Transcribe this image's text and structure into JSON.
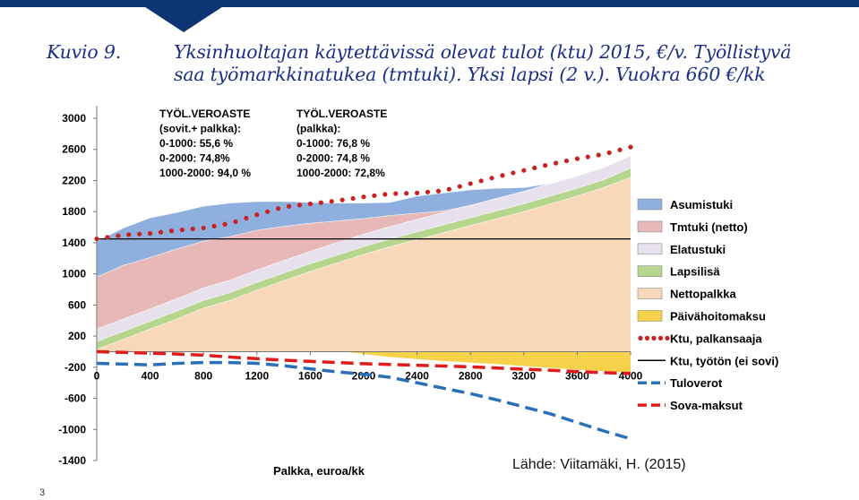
{
  "title": {
    "number": "Kuvio 9.",
    "line1": "Yksinhuoltajan käytettävissä olevat tulot (ktu) 2015, €/v. Työllistyvä",
    "line2": "saa työmarkkinatukea (tmtuki). Yksi lapsi (2 v.). Vuokra 660 €/kk"
  },
  "source": "Lähde: Viitamäki, H. (2015)",
  "page_number": "3",
  "colors": {
    "brand_bar": "#0d3473",
    "title": "#1c2f86",
    "asumistuki": "#8fb0de",
    "tmtuki": "#e8b8b9",
    "elatustuki": "#e7e1ee",
    "lapsilisa": "#b6d58d",
    "nettopalkka": "#f9d7b9",
    "paivahoito": "#f6d24b",
    "ktu_palkansaaja": "#c8211f",
    "ktu_tyoton": "#000000",
    "tuloverot": "#2b6fb7",
    "sova": "#e01b1b"
  },
  "chart_data": {
    "type": "area",
    "xlabel": "Palkka, euroa/kk",
    "ylabel": "",
    "xlim": [
      0,
      4000
    ],
    "ylim": [
      -1400,
      3000
    ],
    "xticks": [
      0,
      400,
      800,
      1200,
      1600,
      2000,
      2400,
      2800,
      3200,
      3600,
      4000
    ],
    "yticks": [
      3000,
      2600,
      2200,
      1800,
      1400,
      1000,
      600,
      200,
      -200,
      -600,
      -1000,
      -1400
    ],
    "grid": false,
    "legend_position": "right",
    "x": [
      0,
      200,
      400,
      600,
      800,
      1000,
      1200,
      1400,
      1600,
      1800,
      2000,
      2200,
      2400,
      2600,
      2800,
      3000,
      3200,
      3400,
      3600,
      3800,
      4000
    ],
    "stacked_cumulative_tops": {
      "Nettopalkka": [
        30,
        160,
        290,
        420,
        560,
        660,
        790,
        910,
        1030,
        1140,
        1250,
        1350,
        1440,
        1530,
        1620,
        1710,
        1800,
        1900,
        2000,
        2110,
        2240
      ],
      "Lapsilisä": [
        130,
        260,
        390,
        520,
        660,
        760,
        890,
        1010,
        1130,
        1240,
        1350,
        1450,
        1540,
        1630,
        1720,
        1810,
        1900,
        2000,
        2100,
        2210,
        2360
      ],
      "Elatustuki": [
        290,
        420,
        550,
        680,
        820,
        920,
        1050,
        1170,
        1290,
        1400,
        1510,
        1610,
        1700,
        1790,
        1880,
        1970,
        2060,
        2160,
        2260,
        2370,
        2520
      ],
      "Tmtuki (netto)": [
        960,
        1110,
        1210,
        1320,
        1420,
        1480,
        1560,
        1610,
        1650,
        1680,
        1710,
        1750,
        1780,
        1810,
        1880,
        1970,
        2060,
        2160,
        2260,
        2370,
        2520
      ],
      "Asumistuki": [
        1420,
        1590,
        1720,
        1790,
        1870,
        1910,
        1930,
        1930,
        1920,
        1910,
        1910,
        1920,
        2000,
        2040,
        2080,
        2100,
        2110,
        2160,
        2260,
        2370,
        2520
      ]
    },
    "paivahoitomaksu_range": {
      "x": [
        1900,
        2200,
        2600,
        3000,
        3400,
        3800,
        4000
      ],
      "values": [
        -10,
        -70,
        -120,
        -160,
        -210,
        -250,
        -270
      ]
    },
    "series": [
      {
        "name": "Ktu, palkansaaja",
        "values": [
          1450,
          1500,
          1520,
          1560,
          1590,
          1650,
          1760,
          1860,
          1900,
          1940,
          1990,
          2030,
          2040,
          2070,
          2160,
          2250,
          2330,
          2410,
          2480,
          2540,
          2630
        ]
      },
      {
        "name": "Ktu, työtön (ei sovi)",
        "values": [
          1450,
          1450,
          1450,
          1450,
          1450,
          1450,
          1450,
          1450,
          1450,
          1450,
          1450,
          1450,
          1450,
          1450,
          1450,
          1450,
          1450,
          1450,
          1450,
          1450,
          1450
        ]
      },
      {
        "name": "Tuloverot",
        "values": [
          -150,
          -160,
          -170,
          -150,
          -140,
          -140,
          -150,
          -180,
          -220,
          -260,
          -290,
          -330,
          -400,
          -470,
          -540,
          -620,
          -710,
          -800,
          -910,
          -1020,
          -1120
        ]
      },
      {
        "name": "Sova-maksut",
        "values": [
          0,
          -10,
          -20,
          -30,
          -45,
          -70,
          -90,
          -110,
          -125,
          -140,
          -155,
          -165,
          -175,
          -185,
          -195,
          -210,
          -225,
          -240,
          -255,
          -270,
          -280
        ]
      }
    ],
    "legend": [
      {
        "label": "Asumistuki",
        "kind": "patch",
        "color": "#8fb0de"
      },
      {
        "label": "Tmtuki (netto)",
        "kind": "patch",
        "color": "#e8b8b9"
      },
      {
        "label": "Elatustuki",
        "kind": "patch",
        "color": "#e7e1ee"
      },
      {
        "label": "Lapsilisä",
        "kind": "patch",
        "color": "#b6d58d"
      },
      {
        "label": "Nettopalkka",
        "kind": "patch",
        "color": "#f9d7b9"
      },
      {
        "label": "Päivähoitomaksu",
        "kind": "patch",
        "color": "#f6d24b"
      },
      {
        "label": "Ktu, palkansaaja",
        "kind": "dots",
        "color": "#c8211f"
      },
      {
        "label": "Ktu, työtön (ei sovi)",
        "kind": "solid",
        "color": "#000000"
      },
      {
        "label": "Tuloverot",
        "kind": "dashed",
        "color": "#2b6fb7"
      },
      {
        "label": "Sova-maksut",
        "kind": "dashed",
        "color": "#e01b1b"
      }
    ],
    "annotations": {
      "block1": [
        "TYÖL.VEROASTE",
        "(sovit.+ palkka):",
        "0-1000: 55,6 %",
        "0-2000:  74,8%",
        "1000-2000: 94,0 %"
      ],
      "block2": [
        "TYÖL.VEROASTE",
        "(palkka):",
        "0-1000: 76,8 %",
        "0-2000: 74,8 %",
        "1000-2000: 72,8%"
      ]
    }
  }
}
